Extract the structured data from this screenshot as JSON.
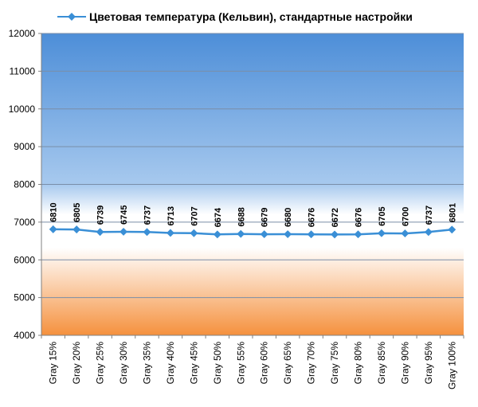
{
  "chart_data": {
    "type": "line",
    "title": "Цветовая температура (Кельвин), стандартные настройки",
    "legend_position": "top",
    "grid": true,
    "xlabel": "",
    "ylabel": "",
    "ylim": [
      4000,
      12000
    ],
    "yticks": [
      "4000",
      "5000",
      "6000",
      "7000",
      "8000",
      "9000",
      "10000",
      "11000",
      "12000"
    ],
    "categories": [
      "Gray 15%",
      "Gray 20%",
      "Gray 25%",
      "Gray 30%",
      "Gray 35%",
      "Gray 40%",
      "Gray 45%",
      "Gray 50%",
      "Gray 55%",
      "Gray 60%",
      "Gray 65%",
      "Gray 70%",
      "Gray 75%",
      "Gray 80%",
      "Gray 85%",
      "Gray 90%",
      "Gray 95%",
      "Gray 100%"
    ],
    "series": [
      {
        "name": "Цветовая температура (Кельвин), стандартные настройки",
        "color": "#3a8fd6",
        "values": [
          6810,
          6805,
          6739,
          6745,
          6737,
          6713,
          6707,
          6674,
          6688,
          6679,
          6680,
          6676,
          6672,
          6676,
          6705,
          6700,
          6737,
          6801
        ]
      }
    ]
  }
}
